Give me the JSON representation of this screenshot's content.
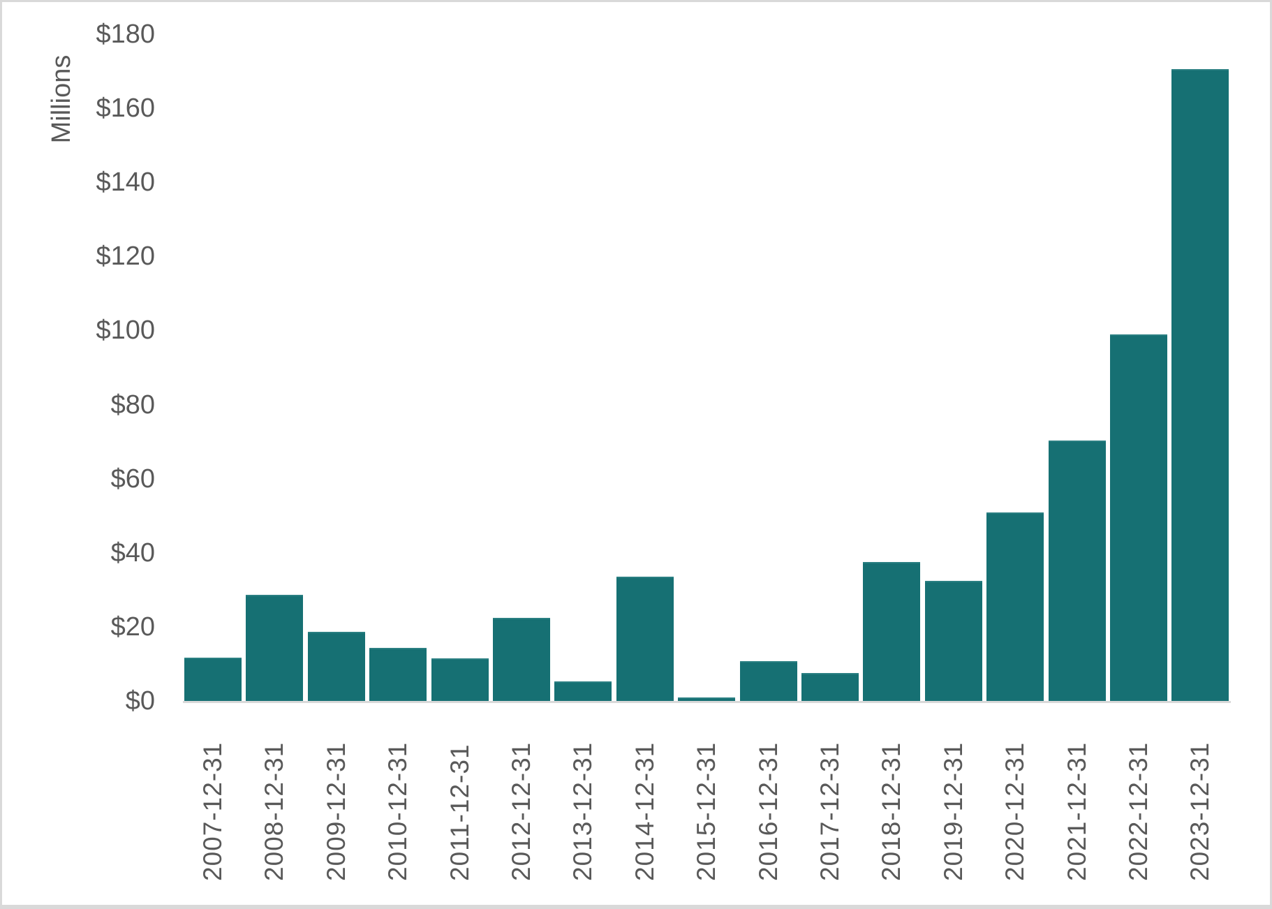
{
  "chart_data": {
    "type": "bar",
    "title": "",
    "xlabel": "",
    "ylabel": "Millions",
    "ylim": [
      0,
      180
    ],
    "yticks": [
      0,
      20,
      40,
      60,
      80,
      100,
      120,
      140,
      160,
      180
    ],
    "ytick_labels": [
      "$0",
      "$20",
      "$40",
      "$60",
      "$80",
      "$100",
      "$120",
      "$140",
      "$160",
      "$180"
    ],
    "grid": false,
    "legend": null,
    "color": "#167073",
    "categories": [
      "2007-12-31",
      "2008-12-31",
      "2009-12-31",
      "2010-12-31",
      "2011-12-31",
      "2012-12-31",
      "2013-12-31",
      "2014-12-31",
      "2015-12-31",
      "2016-12-31",
      "2017-12-31",
      "2018-12-31",
      "2019-12-31",
      "2020-12-31",
      "2021-12-31",
      "2022-12-31",
      "2023-12-31"
    ],
    "values": [
      11.7,
      28.7,
      18.7,
      14.4,
      11.5,
      22.5,
      5.3,
      33.6,
      1.0,
      10.7,
      7.6,
      37.6,
      32.5,
      50.8,
      70.3,
      99.0,
      170.5
    ],
    "units": "USD millions"
  }
}
